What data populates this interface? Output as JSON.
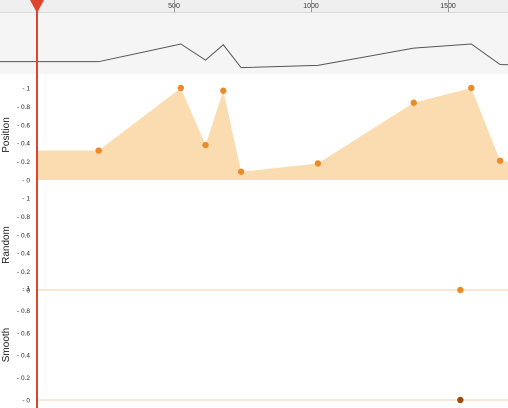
{
  "ruler": {
    "labels": [
      "500",
      "1000",
      "1500"
    ],
    "ticks": [
      0,
      500,
      1000,
      1500
    ]
  },
  "tracks": [
    {
      "name": "Position",
      "ticks": [
        "1",
        "0.8",
        "0.6",
        "0.4",
        "0.2",
        "0"
      ],
      "keyframes": [
        {
          "t": -500,
          "v": 0.32
        },
        {
          "t": 225,
          "v": 0.32
        },
        {
          "t": 525,
          "v": 1.0
        },
        {
          "t": 615,
          "v": 0.38
        },
        {
          "t": 680,
          "v": 0.97
        },
        {
          "t": 745,
          "v": 0.09
        },
        {
          "t": 1025,
          "v": 0.18
        },
        {
          "t": 1375,
          "v": 0.84
        },
        {
          "t": 1585,
          "v": 1.0
        },
        {
          "t": 1690,
          "v": 0.21
        },
        {
          "t": 1800,
          "v": 0.2
        }
      ],
      "markers": [
        225,
        525,
        615,
        680,
        745,
        1025,
        1375,
        1585,
        1690
      ],
      "fill": "#fbdcb0",
      "dot": "#ec8a28"
    },
    {
      "name": "Random",
      "ticks": [
        "1",
        "0.8",
        "0.6",
        "0.4",
        "0.2",
        "0"
      ],
      "keyframes": [],
      "markers": [
        {
          "t": 1545,
          "v": 0
        }
      ],
      "dot": "#ec8a28"
    },
    {
      "name": "Smooth",
      "ticks": [
        "1",
        "0.8",
        "0.6",
        "0.4",
        "0.2",
        "0"
      ],
      "keyframes": [],
      "markers": [
        {
          "t": 1545,
          "v": 0
        }
      ],
      "dot": "#9c4a0c"
    }
  ],
  "colors": {
    "playhead": "#e0442c",
    "overview_line": "#555555",
    "baseline": "#f6cfa8"
  },
  "playhead_icon": "triangle-down-icon"
}
